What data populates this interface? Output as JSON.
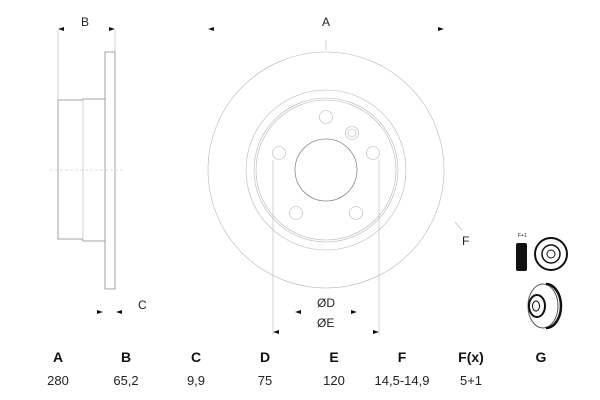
{
  "drawing": {
    "labels": {
      "A": "A",
      "B": "B",
      "C": "C",
      "D": "ØD",
      "E": "ØE",
      "F": "F"
    },
    "thumbnail_text": "F+1"
  },
  "table": {
    "headers": [
      "A",
      "B",
      "C",
      "D",
      "E",
      "F",
      "F(x)",
      "G"
    ],
    "values": [
      "280",
      "65,2",
      "9,9",
      "75",
      "120",
      "14,5-14,9",
      "5+1",
      ""
    ]
  }
}
